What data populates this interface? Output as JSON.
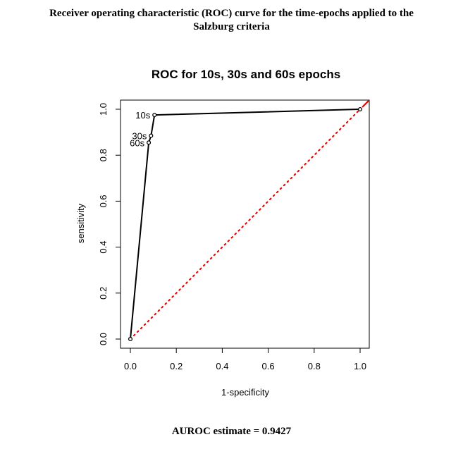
{
  "figure": {
    "caption_line1": "Receiver operating characteristic (ROC) curve for the time-epochs applied to the",
    "caption_line2": "Salzburg criteria",
    "footer": "AUROC estimate = 0.9427"
  },
  "chart_data": {
    "type": "line",
    "title": "ROC for 10s, 30s and 60s epochs",
    "xlabel": "1-specificity",
    "ylabel": "sensitivity",
    "xlim": [
      0,
      1
    ],
    "ylim": [
      0,
      1
    ],
    "xticks": [
      "0.0",
      "0.2",
      "0.4",
      "0.6",
      "0.8",
      "1.0"
    ],
    "yticks": [
      "0.0",
      "0.2",
      "0.4",
      "0.6",
      "0.8",
      "1.0"
    ],
    "grid": false,
    "legend": "none",
    "series": [
      {
        "line_color": "#000000",
        "points": [
          {
            "x": 0.0,
            "y": 0.0,
            "label": ""
          },
          {
            "x": 0.08,
            "y": 0.855,
            "label": "60s"
          },
          {
            "x": 0.09,
            "y": 0.885,
            "label": "30s"
          },
          {
            "x": 0.105,
            "y": 0.975,
            "label": "10s"
          },
          {
            "x": 1.0,
            "y": 1.0,
            "label": ""
          }
        ]
      }
    ],
    "reference_line": {
      "x": [
        0,
        1
      ],
      "y": [
        0,
        1
      ],
      "color": "#dd0000",
      "style": "dotted"
    }
  }
}
